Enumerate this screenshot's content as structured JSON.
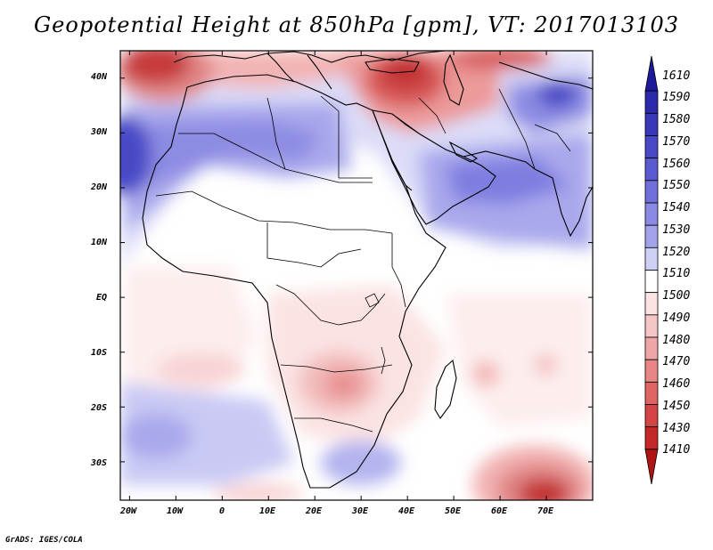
{
  "title": "Geopotential Height at 850hPa [gpm], VT: 2017013103",
  "footer": "GrADS: IGES/COLA",
  "map": {
    "variable": "Geopotential Height",
    "level": "850hPa",
    "units": "gpm",
    "valid_time": "2017013103",
    "lon_range": [
      -22,
      80
    ],
    "lat_range": [
      -37,
      45
    ],
    "lon_ticks": [
      "20W",
      "10W",
      "0",
      "10E",
      "20E",
      "30E",
      "40E",
      "50E",
      "60E",
      "70E"
    ],
    "lat_ticks": [
      "40N",
      "30N",
      "20N",
      "10N",
      "EQ",
      "10S",
      "20S",
      "30S"
    ]
  },
  "colorbar": {
    "labels": [
      "1610",
      "1590",
      "1580",
      "1570",
      "1560",
      "1550",
      "1540",
      "1530",
      "1520",
      "1510",
      "1500",
      "1490",
      "1480",
      "1470",
      "1460",
      "1450",
      "1430",
      "1410"
    ],
    "colors": [
      "#1d1a9c",
      "#2c2aab",
      "#3a38b9",
      "#4a48c6",
      "#5c5ad1",
      "#7170da",
      "#8a89e3",
      "#a3a3ec",
      "#cfd0f6",
      "#ffffff",
      "#fbe3e3",
      "#f6c6c6",
      "#efa6a6",
      "#e88686",
      "#df6464",
      "#d44444",
      "#c42828",
      "#b01414"
    ]
  },
  "colors": {
    "high": "#3a38b9",
    "low": "#c42828",
    "neutral": "#ffffff"
  }
}
